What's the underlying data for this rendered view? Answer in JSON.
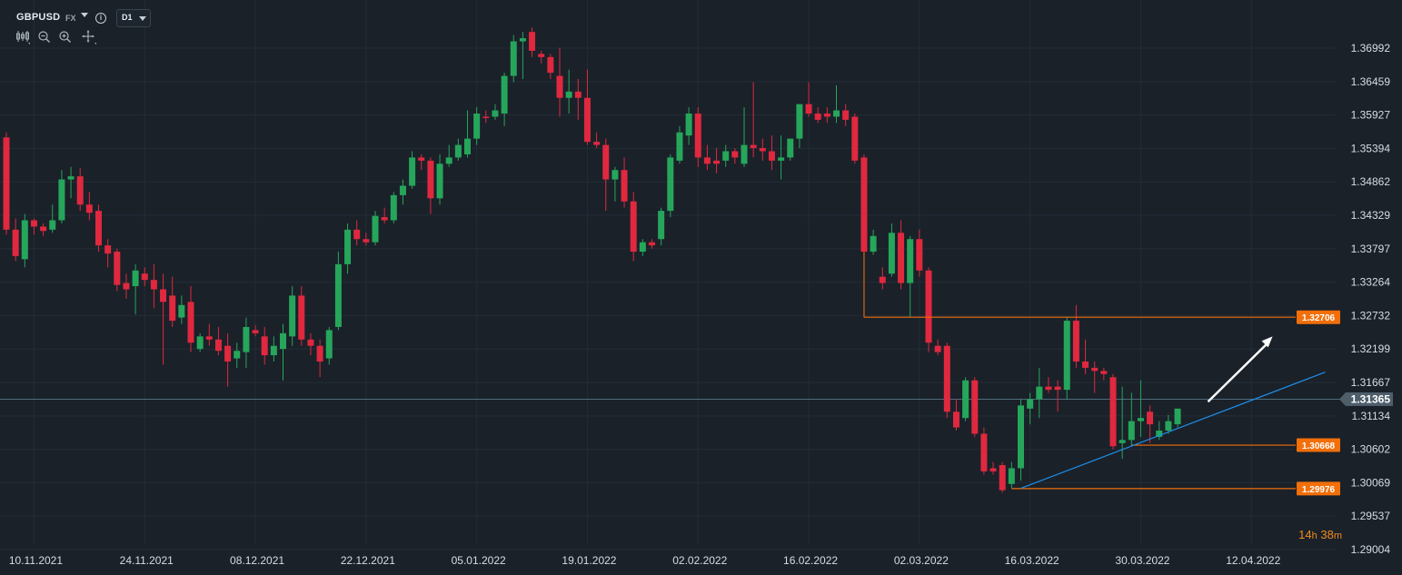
{
  "header": {
    "symbol": "GBPUSD",
    "market": "FX",
    "timeframe": "D1"
  },
  "toolbar_icons": [
    "candles-icon",
    "zoom-out-icon",
    "zoom-in-icon",
    "crosshair-icon"
  ],
  "countdown": {
    "hours": "14",
    "h_unit": "h",
    "minutes": "38",
    "m_unit": "m"
  },
  "colors": {
    "background": "#1a2129",
    "grid": "#232c36",
    "bull": "#26a65b",
    "bear": "#e0283f",
    "level": "#f26f0a",
    "trendline": "#1f8fea",
    "current_price_line": "#4f6c7c",
    "axis_text": "#d8dde3",
    "arrow": "#ffffff"
  },
  "chart_data": {
    "type": "candlestick",
    "title": "",
    "xlabel": "",
    "ylabel": "",
    "ylim": [
      1.288,
      1.37725
    ],
    "y_ticks": [
      "1.36992",
      "1.36459",
      "1.35927",
      "1.35394",
      "1.34862",
      "1.34329",
      "1.33797",
      "1.33264",
      "1.32732",
      "1.32199",
      "1.31667",
      "1.31134",
      "1.30602",
      "1.30069",
      "1.29537",
      "1.29004"
    ],
    "x_labels": [
      {
        "date": "10.11.2021",
        "index": 3
      },
      {
        "date": "24.11.2021",
        "index": 15
      },
      {
        "date": "08.12.2021",
        "index": 27
      },
      {
        "date": "22.12.2021",
        "index": 39
      },
      {
        "date": "05.01.2022",
        "index": 51
      },
      {
        "date": "19.01.2022",
        "index": 63
      },
      {
        "date": "02.02.2022",
        "index": 75
      },
      {
        "date": "16.02.2022",
        "index": 87
      },
      {
        "date": "02.03.2022",
        "index": 99
      },
      {
        "date": "16.03.2022",
        "index": 111
      },
      {
        "date": "30.03.2022",
        "index": 123
      },
      {
        "date": "12.04.2022",
        "index": 135
      }
    ],
    "grid": true,
    "candles": [
      {
        "o": 1.3557,
        "h": 1.3565,
        "c": 1.341,
        "l": 1.3402
      },
      {
        "o": 1.341,
        "h": 1.3428,
        "c": 1.3368,
        "l": 1.336
      },
      {
        "o": 1.3363,
        "h": 1.3435,
        "c": 1.3425,
        "l": 1.335
      },
      {
        "o": 1.3425,
        "h": 1.3428,
        "c": 1.3415,
        "l": 1.3402
      },
      {
        "o": 1.3415,
        "h": 1.342,
        "c": 1.3408,
        "l": 1.34
      },
      {
        "o": 1.341,
        "h": 1.345,
        "c": 1.3425,
        "l": 1.3405
      },
      {
        "o": 1.3425,
        "h": 1.3505,
        "c": 1.349,
        "l": 1.342
      },
      {
        "o": 1.349,
        "h": 1.351,
        "c": 1.3495,
        "l": 1.346
      },
      {
        "o": 1.3495,
        "h": 1.3508,
        "c": 1.345,
        "l": 1.344
      },
      {
        "o": 1.345,
        "h": 1.347,
        "c": 1.3437,
        "l": 1.3425
      },
      {
        "o": 1.344,
        "h": 1.345,
        "c": 1.3385,
        "l": 1.3375
      },
      {
        "o": 1.3385,
        "h": 1.3395,
        "c": 1.3372,
        "l": 1.335
      },
      {
        "o": 1.3375,
        "h": 1.338,
        "c": 1.3322,
        "l": 1.3312
      },
      {
        "o": 1.3325,
        "h": 1.334,
        "c": 1.3315,
        "l": 1.33
      },
      {
        "o": 1.332,
        "h": 1.3355,
        "c": 1.3345,
        "l": 1.3275
      },
      {
        "o": 1.334,
        "h": 1.335,
        "c": 1.333,
        "l": 1.332
      },
      {
        "o": 1.333,
        "h": 1.3355,
        "c": 1.3315,
        "l": 1.3285
      },
      {
        "o": 1.3315,
        "h": 1.334,
        "c": 1.3295,
        "l": 1.3195
      },
      {
        "o": 1.3305,
        "h": 1.3335,
        "c": 1.3265,
        "l": 1.3255
      },
      {
        "o": 1.327,
        "h": 1.3305,
        "c": 1.329,
        "l": 1.326
      },
      {
        "o": 1.3295,
        "h": 1.332,
        "c": 1.323,
        "l": 1.3215
      },
      {
        "o": 1.322,
        "h": 1.3245,
        "c": 1.324,
        "l": 1.3215
      },
      {
        "o": 1.324,
        "h": 1.326,
        "c": 1.3235,
        "l": 1.3225
      },
      {
        "o": 1.3235,
        "h": 1.3255,
        "c": 1.3217,
        "l": 1.321
      },
      {
        "o": 1.3225,
        "h": 1.3245,
        "c": 1.32,
        "l": 1.316
      },
      {
        "o": 1.3205,
        "h": 1.323,
        "c": 1.3217,
        "l": 1.319
      },
      {
        "o": 1.3215,
        "h": 1.327,
        "c": 1.3255,
        "l": 1.319
      },
      {
        "o": 1.325,
        "h": 1.3258,
        "c": 1.3245,
        "l": 1.324
      },
      {
        "o": 1.324,
        "h": 1.3255,
        "c": 1.321,
        "l": 1.3195
      },
      {
        "o": 1.321,
        "h": 1.324,
        "c": 1.3225,
        "l": 1.32
      },
      {
        "o": 1.322,
        "h": 1.326,
        "c": 1.3245,
        "l": 1.317
      },
      {
        "o": 1.324,
        "h": 1.332,
        "c": 1.3305,
        "l": 1.3225
      },
      {
        "o": 1.3305,
        "h": 1.332,
        "c": 1.3235,
        "l": 1.3225
      },
      {
        "o": 1.3235,
        "h": 1.3245,
        "c": 1.3225,
        "l": 1.321
      },
      {
        "o": 1.3225,
        "h": 1.3235,
        "c": 1.32,
        "l": 1.3175
      },
      {
        "o": 1.3205,
        "h": 1.3255,
        "c": 1.325,
        "l": 1.3195
      },
      {
        "o": 1.3255,
        "h": 1.3375,
        "c": 1.3355,
        "l": 1.325
      },
      {
        "o": 1.3355,
        "h": 1.342,
        "c": 1.341,
        "l": 1.334
      },
      {
        "o": 1.341,
        "h": 1.3425,
        "c": 1.3395,
        "l": 1.3385
      },
      {
        "o": 1.3395,
        "h": 1.3405,
        "c": 1.339,
        "l": 1.3385
      },
      {
        "o": 1.339,
        "h": 1.344,
        "c": 1.3432,
        "l": 1.3385
      },
      {
        "o": 1.343,
        "h": 1.3445,
        "c": 1.3425,
        "l": 1.342
      },
      {
        "o": 1.3425,
        "h": 1.347,
        "c": 1.3465,
        "l": 1.342
      },
      {
        "o": 1.3465,
        "h": 1.349,
        "c": 1.348,
        "l": 1.345
      },
      {
        "o": 1.348,
        "h": 1.3535,
        "c": 1.3525,
        "l": 1.3475
      },
      {
        "o": 1.3525,
        "h": 1.353,
        "c": 1.352,
        "l": 1.3505
      },
      {
        "o": 1.352,
        "h": 1.3525,
        "c": 1.346,
        "l": 1.3435
      },
      {
        "o": 1.346,
        "h": 1.353,
        "c": 1.3515,
        "l": 1.345
      },
      {
        "o": 1.3515,
        "h": 1.3545,
        "c": 1.3525,
        "l": 1.351
      },
      {
        "o": 1.3525,
        "h": 1.3555,
        "c": 1.3545,
        "l": 1.352
      },
      {
        "o": 1.353,
        "h": 1.36,
        "c": 1.3555,
        "l": 1.3525
      },
      {
        "o": 1.3555,
        "h": 1.3605,
        "c": 1.3595,
        "l": 1.3545
      },
      {
        "o": 1.359,
        "h": 1.36,
        "c": 1.3588,
        "l": 1.358
      },
      {
        "o": 1.359,
        "h": 1.361,
        "c": 1.36,
        "l": 1.3585
      },
      {
        "o": 1.3595,
        "h": 1.366,
        "c": 1.3655,
        "l": 1.3575
      },
      {
        "o": 1.3655,
        "h": 1.372,
        "c": 1.371,
        "l": 1.3645
      },
      {
        "o": 1.371,
        "h": 1.3725,
        "c": 1.3715,
        "l": 1.365
      },
      {
        "o": 1.3725,
        "h": 1.3732,
        "c": 1.3695,
        "l": 1.3685
      },
      {
        "o": 1.369,
        "h": 1.3695,
        "c": 1.3685,
        "l": 1.3675
      },
      {
        "o": 1.3685,
        "h": 1.369,
        "c": 1.366,
        "l": 1.365
      },
      {
        "o": 1.3655,
        "h": 1.37,
        "c": 1.362,
        "l": 1.359
      },
      {
        "o": 1.362,
        "h": 1.3665,
        "c": 1.363,
        "l": 1.3595
      },
      {
        "o": 1.363,
        "h": 1.365,
        "c": 1.362,
        "l": 1.3585
      },
      {
        "o": 1.362,
        "h": 1.3665,
        "c": 1.355,
        "l": 1.3545
      },
      {
        "o": 1.355,
        "h": 1.3565,
        "c": 1.3545,
        "l": 1.354
      },
      {
        "o": 1.3545,
        "h": 1.3555,
        "c": 1.349,
        "l": 1.344
      },
      {
        "o": 1.349,
        "h": 1.351,
        "c": 1.3505,
        "l": 1.3455
      },
      {
        "o": 1.3505,
        "h": 1.3525,
        "c": 1.3455,
        "l": 1.3445
      },
      {
        "o": 1.3455,
        "h": 1.347,
        "c": 1.3375,
        "l": 1.336
      },
      {
        "o": 1.3375,
        "h": 1.3395,
        "c": 1.339,
        "l": 1.3368
      },
      {
        "o": 1.339,
        "h": 1.3395,
        "c": 1.3385,
        "l": 1.338
      },
      {
        "o": 1.3395,
        "h": 1.3445,
        "c": 1.344,
        "l": 1.3385
      },
      {
        "o": 1.344,
        "h": 1.353,
        "c": 1.3525,
        "l": 1.343
      },
      {
        "o": 1.352,
        "h": 1.3575,
        "c": 1.3565,
        "l": 1.3515
      },
      {
        "o": 1.356,
        "h": 1.3605,
        "c": 1.3595,
        "l": 1.3545
      },
      {
        "o": 1.3595,
        "h": 1.3605,
        "c": 1.3525,
        "l": 1.351
      },
      {
        "o": 1.3525,
        "h": 1.3545,
        "c": 1.3515,
        "l": 1.3505
      },
      {
        "o": 1.352,
        "h": 1.354,
        "c": 1.3515,
        "l": 1.35
      },
      {
        "o": 1.352,
        "h": 1.3545,
        "c": 1.3535,
        "l": 1.351
      },
      {
        "o": 1.3535,
        "h": 1.354,
        "c": 1.3525,
        "l": 1.3515
      },
      {
        "o": 1.3515,
        "h": 1.3605,
        "c": 1.3545,
        "l": 1.351
      },
      {
        "o": 1.3545,
        "h": 1.3645,
        "c": 1.354,
        "l": 1.3525
      },
      {
        "o": 1.354,
        "h": 1.3555,
        "c": 1.3535,
        "l": 1.352
      },
      {
        "o": 1.3535,
        "h": 1.356,
        "c": 1.352,
        "l": 1.3505
      },
      {
        "o": 1.352,
        "h": 1.356,
        "c": 1.3525,
        "l": 1.349
      },
      {
        "o": 1.3525,
        "h": 1.3555,
        "c": 1.3555,
        "l": 1.352
      },
      {
        "o": 1.3555,
        "h": 1.361,
        "c": 1.361,
        "l": 1.354
      },
      {
        "o": 1.361,
        "h": 1.3645,
        "c": 1.3595,
        "l": 1.359
      },
      {
        "o": 1.3595,
        "h": 1.3605,
        "c": 1.3585,
        "l": 1.358
      },
      {
        "o": 1.3595,
        "h": 1.3605,
        "c": 1.359,
        "l": 1.358
      },
      {
        "o": 1.359,
        "h": 1.364,
        "c": 1.36,
        "l": 1.358
      },
      {
        "o": 1.36,
        "h": 1.361,
        "c": 1.3585,
        "l": 1.3575
      },
      {
        "o": 1.359,
        "h": 1.3595,
        "c": 1.352,
        "l": 1.3515
      },
      {
        "o": 1.3525,
        "h": 1.353,
        "c": 1.3375,
        "l": 1.327
      },
      {
        "o": 1.3375,
        "h": 1.341,
        "c": 1.34,
        "l": 1.337
      },
      {
        "o": 1.3335,
        "h": 1.335,
        "c": 1.3325,
        "l": 1.3315
      },
      {
        "o": 1.334,
        "h": 1.342,
        "c": 1.3405,
        "l": 1.3335
      },
      {
        "o": 1.3405,
        "h": 1.3425,
        "c": 1.3325,
        "l": 1.3315
      },
      {
        "o": 1.3325,
        "h": 1.34,
        "c": 1.3395,
        "l": 1.327
      },
      {
        "o": 1.3395,
        "h": 1.341,
        "c": 1.3345,
        "l": 1.3335
      },
      {
        "o": 1.3345,
        "h": 1.335,
        "c": 1.323,
        "l": 1.3215
      },
      {
        "o": 1.3225,
        "h": 1.3235,
        "c": 1.3215,
        "l": 1.321
      },
      {
        "o": 1.3225,
        "h": 1.323,
        "c": 1.312,
        "l": 1.311
      },
      {
        "o": 1.312,
        "h": 1.314,
        "c": 1.3095,
        "l": 1.309
      },
      {
        "o": 1.311,
        "h": 1.3175,
        "c": 1.317,
        "l": 1.3105
      },
      {
        "o": 1.317,
        "h": 1.3175,
        "c": 1.3085,
        "l": 1.308
      },
      {
        "o": 1.3085,
        "h": 1.3095,
        "c": 1.3025,
        "l": 1.302
      },
      {
        "o": 1.303,
        "h": 1.304,
        "c": 1.3025,
        "l": 1.302
      },
      {
        "o": 1.3035,
        "h": 1.304,
        "c": 1.2995,
        "l": 1.2991
      },
      {
        "o": 1.3005,
        "h": 1.304,
        "c": 1.303,
        "l": 1.2998
      },
      {
        "o": 1.303,
        "h": 1.314,
        "c": 1.313,
        "l": 1.301
      },
      {
        "o": 1.3125,
        "h": 1.315,
        "c": 1.314,
        "l": 1.31
      },
      {
        "o": 1.314,
        "h": 1.319,
        "c": 1.316,
        "l": 1.311
      },
      {
        "o": 1.316,
        "h": 1.3175,
        "c": 1.3155,
        "l": 1.315
      },
      {
        "o": 1.316,
        "h": 1.317,
        "c": 1.3155,
        "l": 1.312
      },
      {
        "o": 1.3155,
        "h": 1.327,
        "c": 1.3265,
        "l": 1.314
      },
      {
        "o": 1.3265,
        "h": 1.329,
        "c": 1.32,
        "l": 1.319
      },
      {
        "o": 1.32,
        "h": 1.3235,
        "c": 1.319,
        "l": 1.318
      },
      {
        "o": 1.319,
        "h": 1.32,
        "c": 1.3185,
        "l": 1.315
      },
      {
        "o": 1.3185,
        "h": 1.319,
        "c": 1.318,
        "l": 1.317
      },
      {
        "o": 1.3175,
        "h": 1.318,
        "c": 1.3065,
        "l": 1.306
      },
      {
        "o": 1.307,
        "h": 1.316,
        "c": 1.3075,
        "l": 1.3045
      },
      {
        "o": 1.3075,
        "h": 1.315,
        "c": 1.3105,
        "l": 1.3065
      },
      {
        "o": 1.3105,
        "h": 1.317,
        "c": 1.311,
        "l": 1.308
      },
      {
        "o": 1.312,
        "h": 1.313,
        "c": 1.31,
        "l": 1.307
      },
      {
        "o": 1.308,
        "h": 1.3105,
        "c": 1.309,
        "l": 1.3075
      },
      {
        "o": 1.309,
        "h": 1.3115,
        "c": 1.3105,
        "l": 1.3085
      },
      {
        "o": 1.31,
        "h": 1.3125,
        "c": 1.3125,
        "l": 1.3095
      }
    ],
    "levels": [
      {
        "price": 1.32706,
        "label": "1.32706",
        "start_index": 93
      },
      {
        "price": 1.30668,
        "label": "1.30668",
        "start_index": 122
      },
      {
        "price": 1.29976,
        "label": "1.29976",
        "start_index": 109
      }
    ],
    "current_price": {
      "price": 1.314,
      "label": "1.31365"
    },
    "trendline": {
      "from": {
        "index": 110,
        "price": 1.2998
      },
      "to": {
        "index": 143,
        "price": 1.3183
      }
    },
    "arrow": {
      "from": {
        "index": 130,
        "price": 1.3136
      },
      "to": {
        "index": 137,
        "price": 1.324
      }
    }
  }
}
